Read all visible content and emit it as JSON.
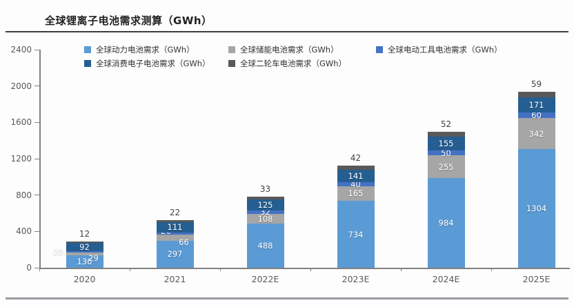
{
  "page": {
    "title": "全球锂离子电池需求测算（GWh）"
  },
  "chart_data": {
    "type": "bar",
    "stacked": true,
    "title": "全球锂离子电池需求测算（GWh）",
    "xlabel": "",
    "ylabel": "",
    "ylim": [
      0,
      2400
    ],
    "yticks": [
      0,
      400,
      800,
      1200,
      1600,
      2000,
      2400
    ],
    "grid": false,
    "legend_position": "top",
    "value_labels": "white inside segments; top series labeled above each bar",
    "categories": [
      "2020",
      "2021",
      "2022E",
      "2023E",
      "2024E",
      "2025E"
    ],
    "series": [
      {
        "key": "power",
        "name": "全球动力电池需求（GWh）",
        "color": "#5B9BD5",
        "values": [
          136,
          297,
          488,
          734,
          984,
          1304
        ]
      },
      {
        "key": "storage",
        "name": "全球储能电池需求（GWh）",
        "color": "#A6A6A6",
        "values": [
          29,
          66,
          108,
          165,
          255,
          342
        ]
      },
      {
        "key": "power-tool",
        "name": "全球电动工具电池需求（GWh）",
        "color": "#4472C4",
        "values": [
          20,
          26,
          32,
          40,
          50,
          60
        ]
      },
      {
        "key": "consumer-electronics",
        "name": "全球消费电子电池需求（GWh）",
        "color": "#255E91",
        "values": [
          92,
          111,
          125,
          141,
          155,
          171
        ]
      },
      {
        "key": "two-wheeler",
        "name": "全球二轮车电池需求（GWh）",
        "color": "#595959",
        "values": [
          12,
          22,
          33,
          42,
          52,
          59
        ]
      }
    ],
    "totals": [
      289,
      522,
      786,
      1122,
      1496,
      1936
    ]
  },
  "colors": {
    "axis": "#808080",
    "tick_label": "#595959",
    "outside_label": "#404040",
    "divider_top": "#3c3c3c",
    "divider_bottom": "#9b9ba1",
    "background": "#fdfdfd"
  }
}
